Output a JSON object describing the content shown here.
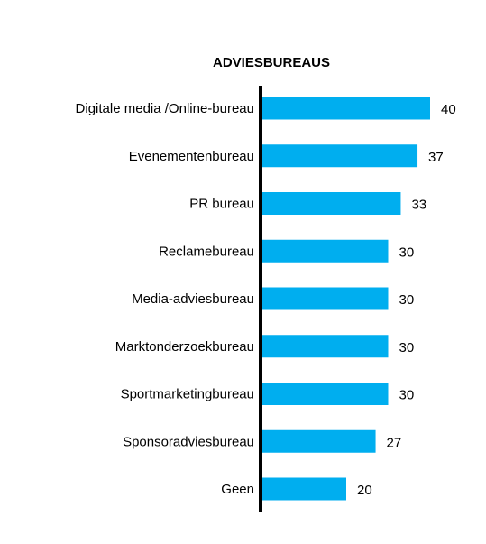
{
  "chart_data": {
    "type": "bar",
    "orientation": "horizontal",
    "title": "ADVIESBUREAUS",
    "categories": [
      "Digitale media /Online-bureau",
      "Evenementenbureau",
      "PR bureau",
      "Reclamebureau",
      "Media-adviesbureau",
      "Marktonderzoekbureau",
      "Sportmarketingbureau",
      "Sponsoradviesbureau",
      "Geen"
    ],
    "values": [
      40,
      37,
      33,
      30,
      30,
      30,
      30,
      27,
      20
    ],
    "value_labels": [
      "40",
      "37",
      "33",
      "30",
      "30",
      "30",
      "30",
      "27",
      "20"
    ],
    "xlim": [
      0,
      40
    ],
    "grid": false,
    "legend": "none",
    "bar_color": "#00AEEF",
    "axis_color": "#000000"
  }
}
